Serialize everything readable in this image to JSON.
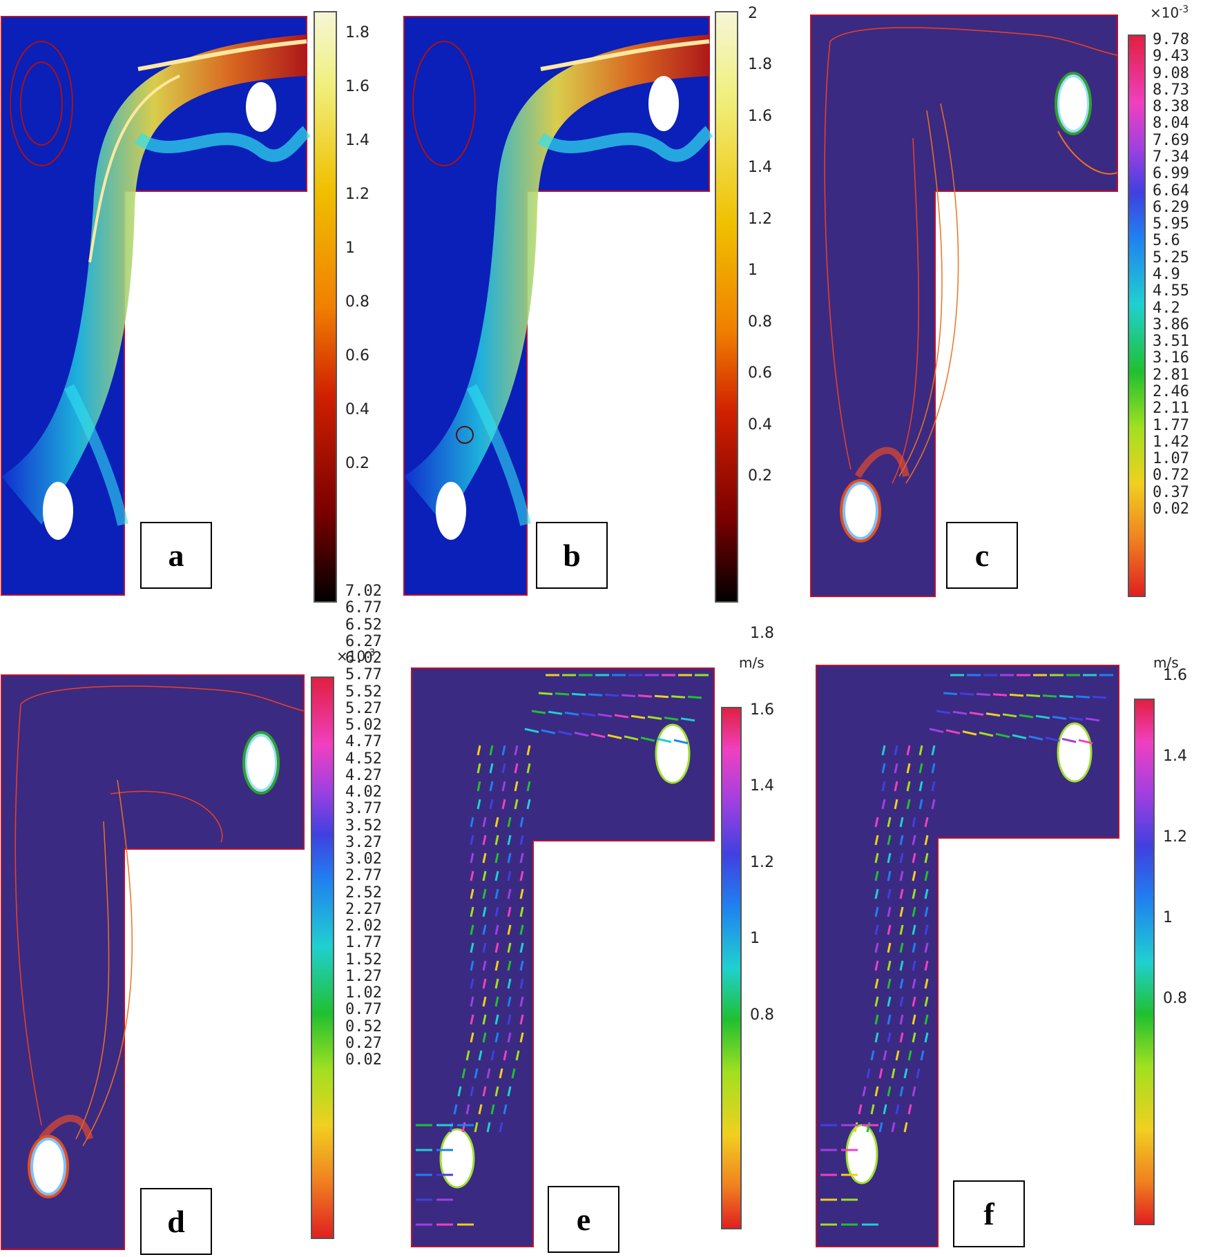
{
  "panels": [
    {
      "id": "a",
      "label": "a",
      "style": "jet",
      "cbar": {
        "ticks": [
          "1.8",
          "1.6",
          "1.4",
          "1.2",
          "1",
          "0.8",
          "0.6",
          "0.4",
          "0.2"
        ],
        "max": 1.88
      }
    },
    {
      "id": "b",
      "label": "b",
      "style": "jet",
      "cbar": {
        "ticks": [
          "2",
          "1.8",
          "1.6",
          "1.4",
          "1.2",
          "1",
          "0.8",
          "0.6",
          "0.4",
          "0.2"
        ],
        "max": 2.05
      }
    },
    {
      "id": "c",
      "label": "c",
      "style": "contour",
      "cbar": {
        "exp": "×10",
        "exp_power": "-3",
        "ticks": [
          "9.78",
          "9.43",
          "9.08",
          "8.73",
          "8.38",
          "8.04",
          "7.69",
          "7.34",
          "6.99",
          "6.64",
          "6.29",
          "5.95",
          "5.6",
          "5.25",
          "4.9",
          "4.55",
          "4.2",
          "3.86",
          "3.51",
          "3.16",
          "2.81",
          "2.46",
          "2.11",
          "1.77",
          "1.42",
          "1.07",
          "0.72",
          "0.37",
          "0.02"
        ]
      }
    },
    {
      "id": "d",
      "label": "d",
      "style": "contour",
      "cbar": {
        "exp": "×10",
        "exp_power": "-3",
        "ticks": [
          "7.02",
          "6.77",
          "6.52",
          "6.27",
          "6.02",
          "5.77",
          "5.52",
          "5.27",
          "5.02",
          "4.77",
          "4.52",
          "4.27",
          "4.02",
          "3.77",
          "3.52",
          "3.27",
          "3.02",
          "2.77",
          "2.52",
          "2.27",
          "2.02",
          "1.77",
          "1.52",
          "1.27",
          "1.02",
          "0.77",
          "0.52",
          "0.27",
          "0.02"
        ]
      }
    },
    {
      "id": "e",
      "label": "e",
      "style": "arrows",
      "cbar": {
        "unit": "m/s",
        "ticks": [
          "1.8",
          "1.6",
          "1.4",
          "1.2",
          "1",
          "0.8"
        ]
      }
    },
    {
      "id": "f",
      "label": "f",
      "style": "arrows",
      "cbar": {
        "unit": "m/s",
        "ticks": [
          "1.6",
          "1.4",
          "1.2",
          "1",
          "0.8"
        ]
      }
    }
  ],
  "colors": {
    "domain_bg": "#3b2a82",
    "domain_edge": "#c0102a",
    "jet_low": "#0a18c8",
    "jet_mid": "#f2d23a",
    "jet_high": "#d42a08"
  }
}
